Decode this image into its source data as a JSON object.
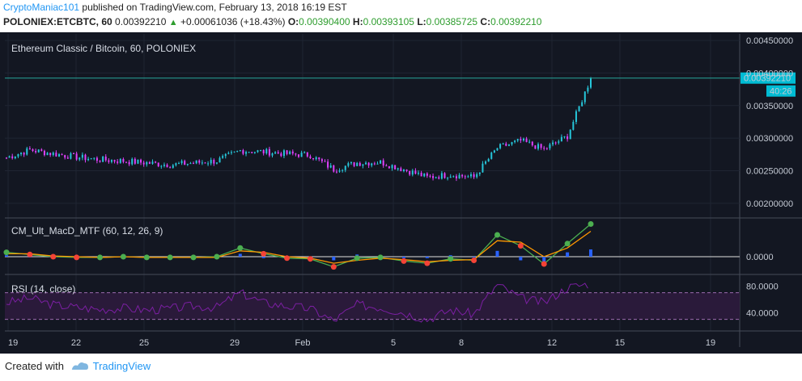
{
  "header": {
    "user": "CryptoManiac101",
    "published": "published on TradingView.com, February 13, 2018 16:19 EST",
    "symbol": "POLONIEX:ETCBTC, 60",
    "last": "0.00392210",
    "change": "+0.00061036 (+18.43%)",
    "o_label": "O:",
    "o_value": "0.00390400",
    "h_label": "H:",
    "h_value": "0.00393105",
    "l_label": "L:",
    "l_value": "0.00385725",
    "c_label": "C:",
    "c_value": "0.00392210"
  },
  "footer": {
    "created": "Created with",
    "brand": "TradingView"
  },
  "colors": {
    "background": "#131722",
    "up": "#26c6da",
    "down": "#e040fb",
    "price_line": "#26a69a",
    "badge": "#00bcd4",
    "macd_fast": "#4caf50",
    "macd_slow": "#ff9800",
    "rsi_line": "#7b1fa2",
    "rsi_band": "#2a1a3a"
  },
  "chart_data": [
    {
      "type": "candlestick",
      "title": "Ethereum Classic / Bitcoin, 60, POLONIEX",
      "x_ticks": [
        "19",
        "22",
        "25",
        "29",
        "Feb",
        "5",
        "8",
        "12",
        "15",
        "19"
      ],
      "y_ticks": [
        "0.00200000",
        "0.00250000",
        "0.00300000",
        "0.00350000",
        "0.00400000",
        "0.00450000"
      ],
      "ylim": [
        0.0018,
        0.0046
      ],
      "last_price": "0.00392210",
      "countdown": "40:26",
      "approx_close_path": [
        [
          "19",
          0.0027
        ],
        [
          "20",
          0.00282
        ],
        [
          "21",
          0.00276
        ],
        [
          "22",
          0.00271
        ],
        [
          "23",
          0.00267
        ],
        [
          "24",
          0.00265
        ],
        [
          "25",
          0.00262
        ],
        [
          "26",
          0.00259
        ],
        [
          "27",
          0.00262
        ],
        [
          "28",
          0.00265
        ],
        [
          "29",
          0.00281
        ],
        [
          "30",
          0.00279
        ],
        [
          "31",
          0.00276
        ],
        [
          "Feb 1",
          0.00274
        ],
        [
          "Feb 2",
          0.00252
        ],
        [
          "Feb 3",
          0.00262
        ],
        [
          "Feb 4",
          0.00263
        ],
        [
          "Feb 5",
          0.00252
        ],
        [
          "Feb 6",
          0.0024
        ],
        [
          "Feb 7",
          0.00244
        ],
        [
          "Feb 8",
          0.0024
        ],
        [
          "Feb 9",
          0.00285
        ],
        [
          "Feb 10",
          0.00296
        ],
        [
          "Feb 11",
          0.00283
        ],
        [
          "Feb 12",
          0.00303
        ],
        [
          "Feb 13",
          0.00392
        ]
      ]
    },
    {
      "type": "line",
      "title": "CM_Ult_MacD_MTF (60, 12, 26, 9)",
      "y_ticks": [
        "0.0000"
      ],
      "series": [
        {
          "name": "",
          "color": "#4caf50",
          "values": [
            0.6,
            0.3,
            0.0,
            -0.1,
            -0.1,
            0.0,
            -0.1,
            -0.1,
            -0.1,
            0.0,
            1.2,
            0.4,
            -0.2,
            -0.3,
            -1.4,
            -0.2,
            -0.1,
            -0.6,
            -0.9,
            -0.3,
            -0.5,
            3.0,
            1.5,
            -1.0,
            1.8,
            4.5
          ]
        },
        {
          "name": "",
          "color": "#ff9800",
          "values": [
            0.4,
            0.4,
            0.1,
            0.0,
            -0.1,
            0.0,
            -0.1,
            -0.1,
            -0.1,
            -0.1,
            0.8,
            0.6,
            0.0,
            -0.2,
            -0.9,
            -0.5,
            -0.2,
            -0.4,
            -0.7,
            -0.5,
            -0.4,
            2.2,
            2.0,
            0.0,
            1.2,
            3.5
          ]
        }
      ]
    },
    {
      "type": "line",
      "title": "RSI (14, close)",
      "y_ticks": [
        "40.0000",
        "80.0000"
      ],
      "bands": [
        30,
        70
      ],
      "ylim": [
        15,
        95
      ],
      "series": [
        {
          "name": "",
          "color": "#7b1fa2",
          "values": [
            55,
            62,
            52,
            48,
            45,
            47,
            44,
            46,
            50,
            48,
            70,
            55,
            50,
            46,
            28,
            52,
            48,
            40,
            30,
            44,
            38,
            82,
            62,
            55,
            78,
            84
          ]
        }
      ]
    }
  ]
}
